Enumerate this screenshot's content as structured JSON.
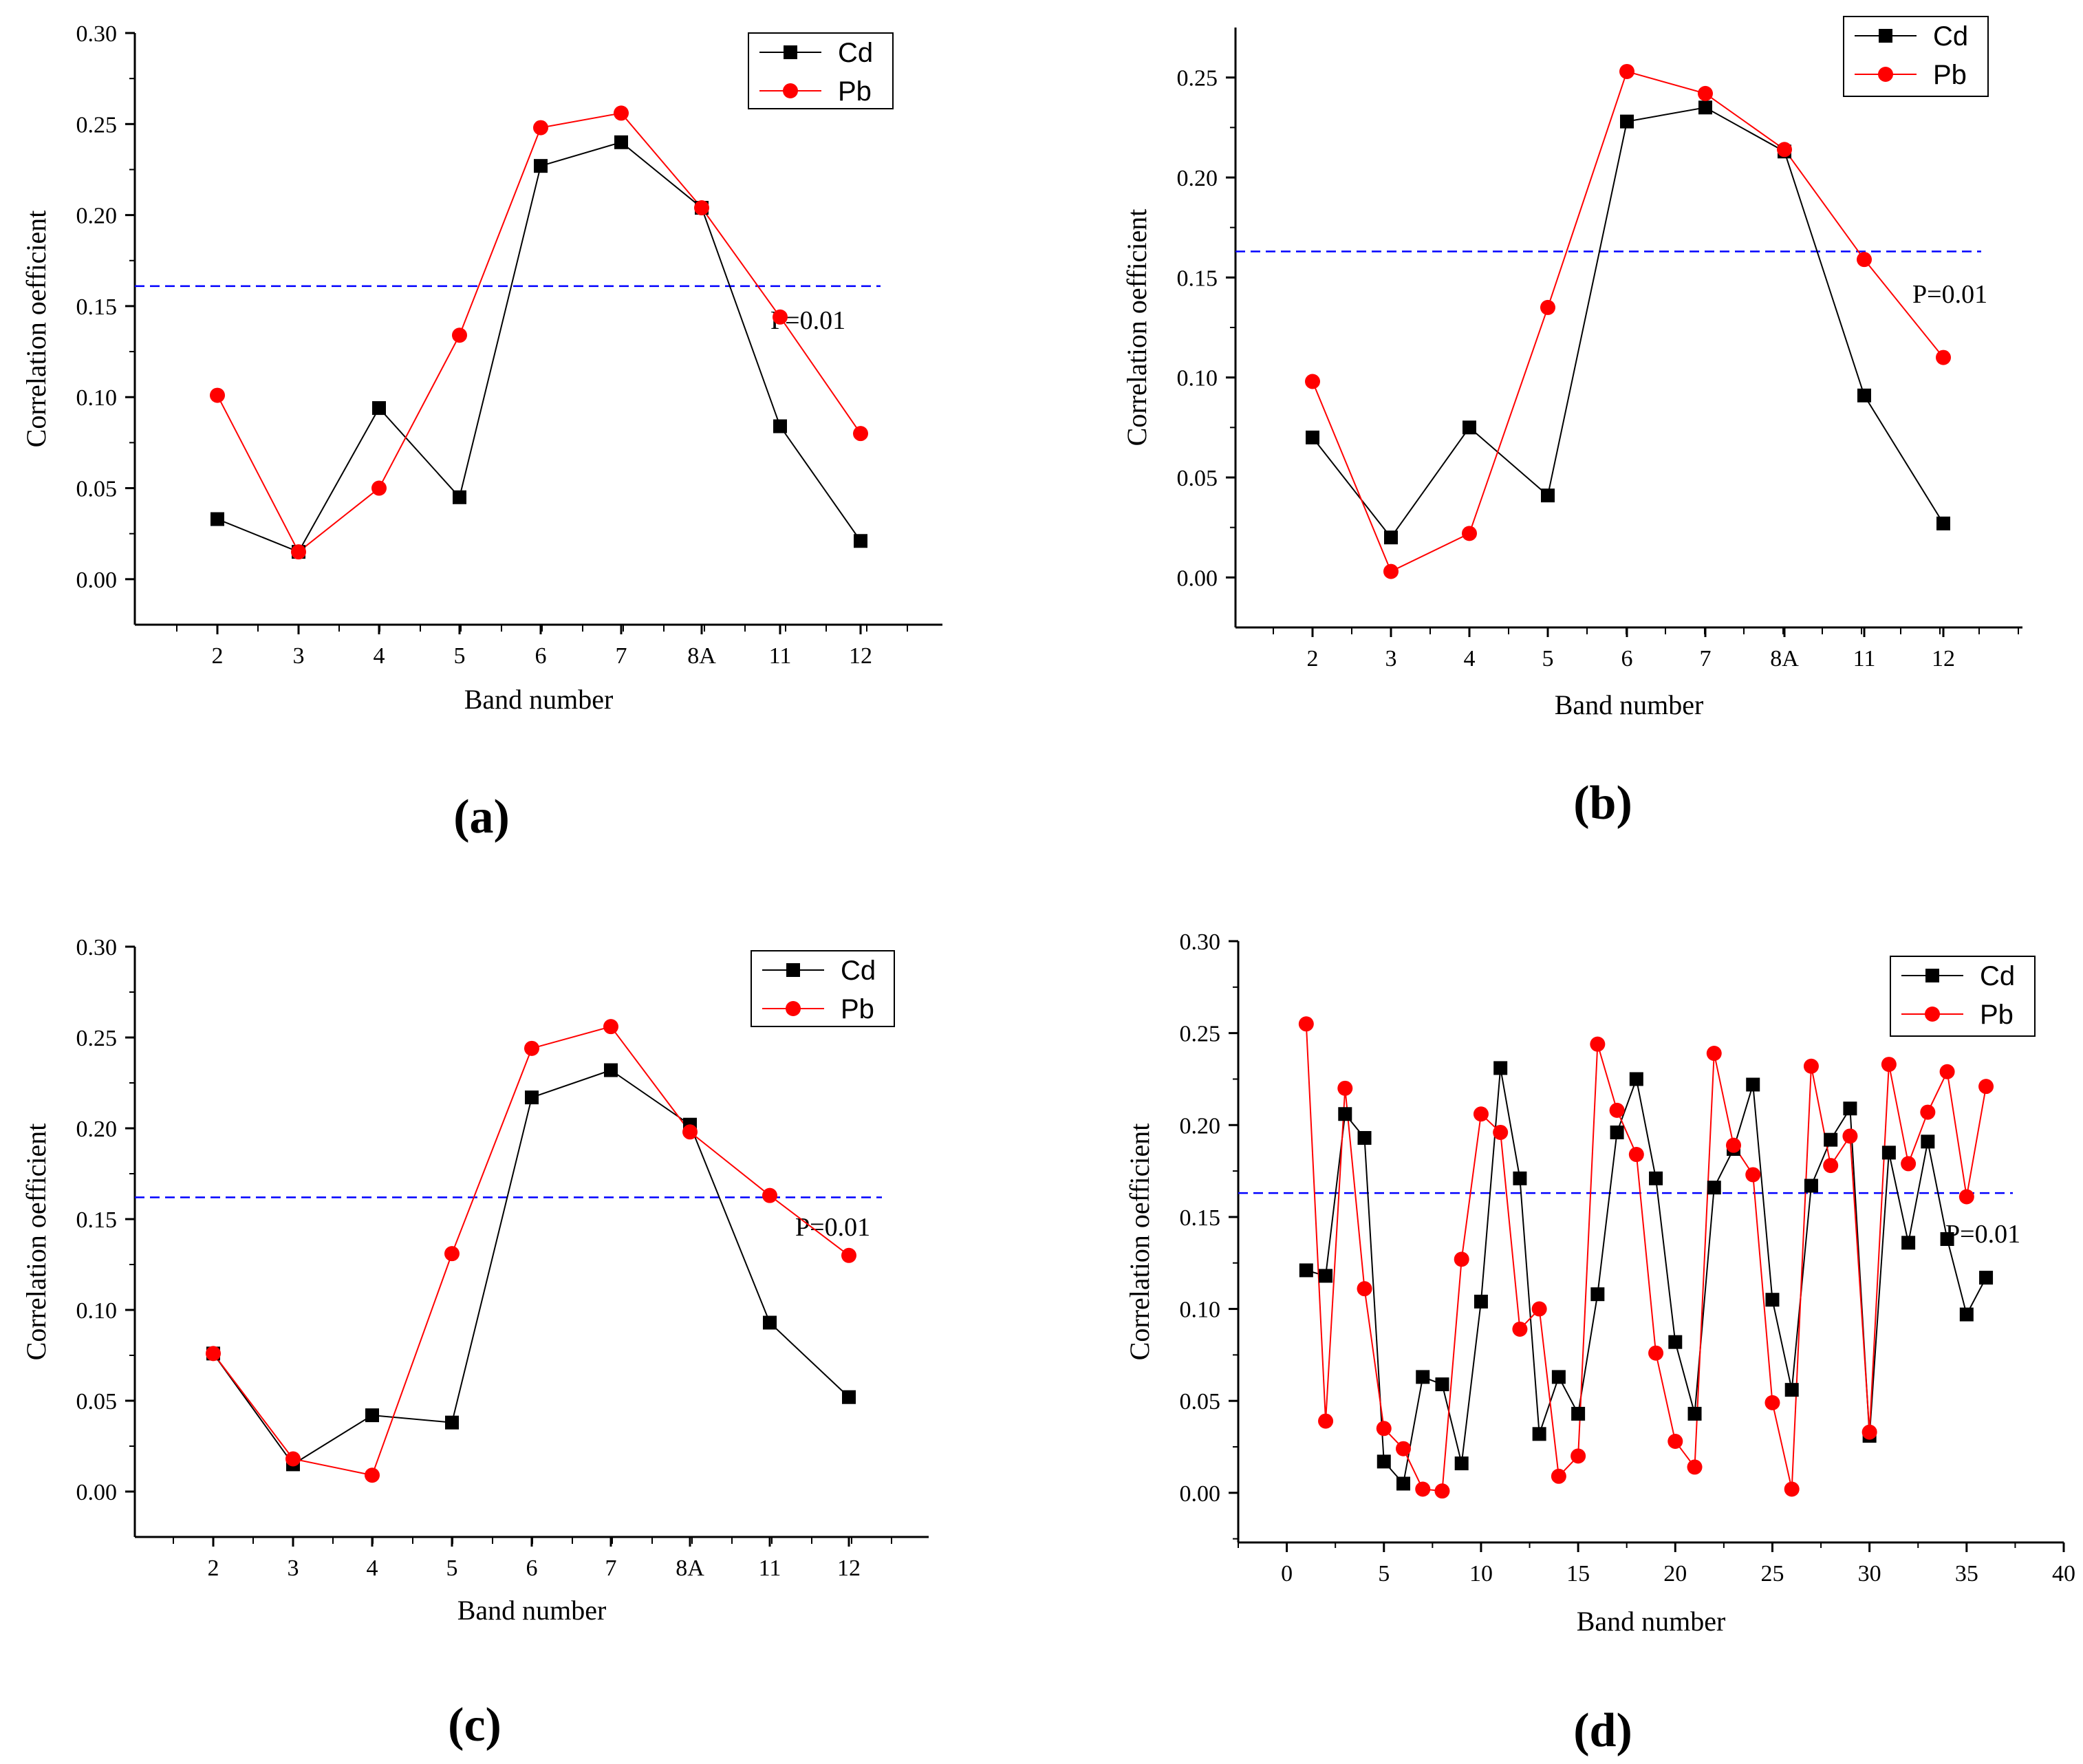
{
  "figure": {
    "panels": [
      "(a)",
      "(b)",
      "(c)",
      "(d)"
    ]
  },
  "chart_data": [
    {
      "type": "line",
      "panel_label": "(a)",
      "xlabel": "Band number",
      "ylabel": "Correlation oefficient",
      "categories": [
        "2",
        "3",
        "4",
        "5",
        "6",
        "7",
        "8A",
        "11",
        "12"
      ],
      "ylim": [
        -0.025,
        0.3
      ],
      "yticks": [
        0.0,
        0.05,
        0.1,
        0.15,
        0.2,
        0.25,
        0.3
      ],
      "ytick_labels": [
        "0.00",
        "0.05",
        "0.10",
        "0.15",
        "0.20",
        "0.25",
        "0.30"
      ],
      "threshold": {
        "value": 0.161,
        "label": "P=0.01",
        "color": "#0000ff"
      },
      "series": [
        {
          "name": "Cd",
          "color": "#000000",
          "marker": "square",
          "values": [
            0.033,
            0.015,
            0.094,
            0.045,
            0.227,
            0.24,
            0.204,
            0.084,
            0.021
          ]
        },
        {
          "name": "Pb",
          "color": "#ff0000",
          "marker": "circle",
          "values": [
            0.101,
            0.015,
            0.05,
            0.134,
            0.248,
            0.256,
            0.204,
            0.144,
            0.08
          ]
        }
      ],
      "legend": "top-right"
    },
    {
      "type": "line",
      "panel_label": "(b)",
      "xlabel": "Band number",
      "ylabel": "Correlation oefficient",
      "categories": [
        "2",
        "3",
        "4",
        "5",
        "6",
        "7",
        "8A",
        "11",
        "12"
      ],
      "ylim": [
        -0.025,
        0.275
      ],
      "yticks": [
        0.0,
        0.05,
        0.1,
        0.15,
        0.2,
        0.25
      ],
      "ytick_labels": [
        "0.00",
        "0.05",
        "0.10",
        "0.15",
        "0.20",
        "0.25"
      ],
      "threshold": {
        "value": 0.163,
        "label": "P=0.01",
        "color": "#0000ff"
      },
      "series": [
        {
          "name": "Cd",
          "color": "#000000",
          "marker": "square",
          "values": [
            0.07,
            0.02,
            0.075,
            0.041,
            0.228,
            0.235,
            0.213,
            0.091,
            0.027
          ]
        },
        {
          "name": "Pb",
          "color": "#ff0000",
          "marker": "circle",
          "values": [
            0.098,
            0.003,
            0.022,
            0.135,
            0.253,
            0.242,
            0.214,
            0.159,
            0.11
          ]
        }
      ],
      "legend": "top-right"
    },
    {
      "type": "line",
      "panel_label": "(c)",
      "xlabel": "Band number",
      "ylabel": "Correlation oefficient",
      "categories": [
        "2",
        "3",
        "4",
        "5",
        "6",
        "7",
        "8A",
        "11",
        "12"
      ],
      "ylim": [
        -0.025,
        0.3
      ],
      "yticks": [
        0.0,
        0.05,
        0.1,
        0.15,
        0.2,
        0.25,
        0.3
      ],
      "ytick_labels": [
        "0.00",
        "0.05",
        "0.10",
        "0.15",
        "0.20",
        "0.25",
        "0.30"
      ],
      "threshold": {
        "value": 0.162,
        "label": "P=0.01",
        "color": "#0000ff"
      },
      "series": [
        {
          "name": "Cd",
          "color": "#000000",
          "marker": "square",
          "values": [
            0.076,
            0.015,
            0.042,
            0.038,
            0.217,
            0.232,
            0.202,
            0.093,
            0.052
          ]
        },
        {
          "name": "Pb",
          "color": "#ff0000",
          "marker": "circle",
          "values": [
            0.076,
            0.018,
            0.009,
            0.131,
            0.244,
            0.256,
            0.198,
            0.163,
            0.13
          ]
        }
      ],
      "legend": "top-right"
    },
    {
      "type": "line",
      "panel_label": "(d)",
      "xlabel": "Band number",
      "ylabel": "Correlation oefficient",
      "xlim": [
        -2.5,
        40
      ],
      "xticks": [
        0,
        5,
        10,
        15,
        20,
        25,
        30,
        35,
        40
      ],
      "xtick_labels": [
        "0",
        "5",
        "10",
        "15",
        "20",
        "25",
        "30",
        "35",
        "40"
      ],
      "ylim": [
        -0.027,
        0.3
      ],
      "yticks": [
        0.0,
        0.05,
        0.1,
        0.15,
        0.2,
        0.25,
        0.3
      ],
      "ytick_labels": [
        "0.00",
        "0.05",
        "0.10",
        "0.15",
        "0.20",
        "0.25",
        "0.30"
      ],
      "threshold": {
        "value": 0.163,
        "label": "P=0.01",
        "color": "#0000ff"
      },
      "x": [
        1,
        2,
        3,
        4,
        5,
        6,
        7,
        8,
        9,
        10,
        11,
        12,
        13,
        14,
        15,
        16,
        17,
        18,
        19,
        20,
        21,
        22,
        23,
        24,
        25,
        26,
        27,
        28,
        29,
        30,
        31,
        32,
        33,
        34,
        35,
        36
      ],
      "series": [
        {
          "name": "Cd",
          "color": "#000000",
          "marker": "square",
          "values": [
            0.121,
            0.118,
            0.206,
            0.193,
            0.017,
            0.005,
            0.063,
            0.059,
            0.016,
            0.104,
            0.231,
            0.171,
            0.032,
            0.063,
            0.043,
            0.108,
            0.196,
            0.225,
            0.171,
            0.082,
            0.043,
            0.166,
            0.187,
            0.222,
            0.105,
            0.056,
            0.167,
            0.192,
            0.209,
            0.031,
            0.185,
            0.136,
            0.191,
            0.138,
            0.097,
            0.117
          ]
        },
        {
          "name": "Pb",
          "color": "#ff0000",
          "marker": "circle",
          "values": [
            0.255,
            0.039,
            0.22,
            0.111,
            0.035,
            0.024,
            0.002,
            0.001,
            0.127,
            0.206,
            0.196,
            0.089,
            0.1,
            0.009,
            0.02,
            0.244,
            0.208,
            0.184,
            0.076,
            0.028,
            0.014,
            0.239,
            0.189,
            0.173,
            0.049,
            0.002,
            0.232,
            0.178,
            0.194,
            0.033,
            0.233,
            0.179,
            0.207,
            0.229,
            0.161,
            0.221
          ]
        }
      ],
      "legend": "top-right"
    }
  ]
}
